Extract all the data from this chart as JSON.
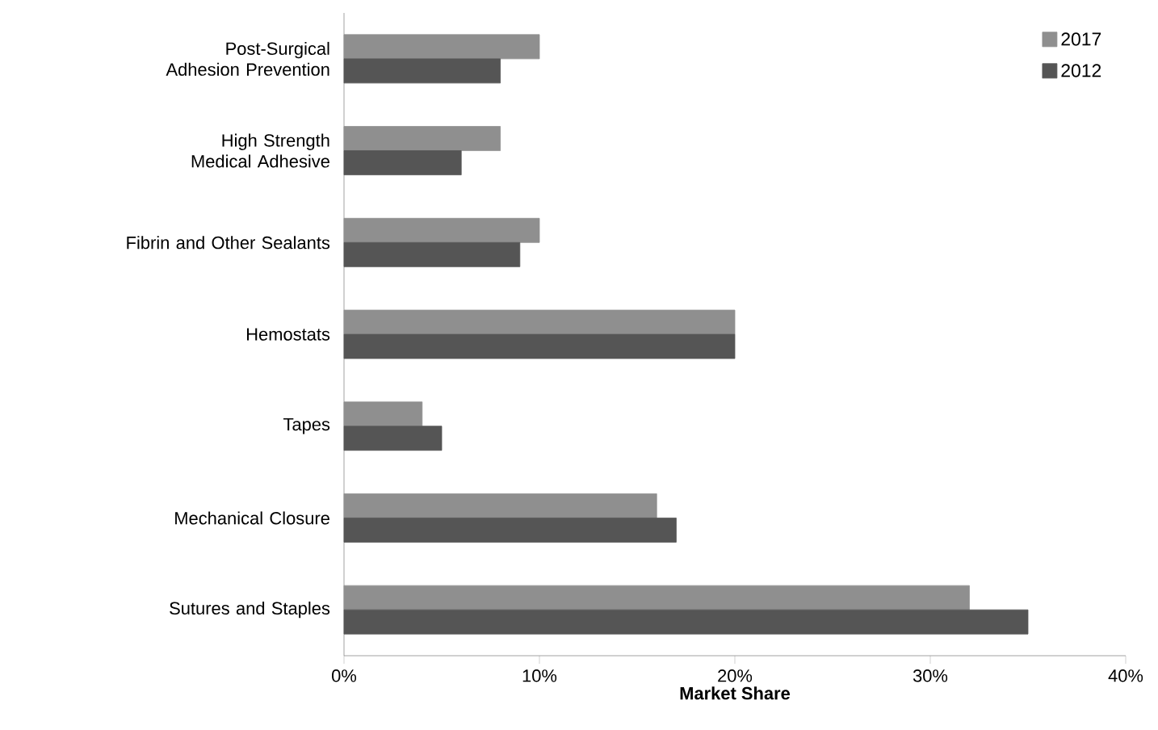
{
  "chart_data": {
    "type": "bar",
    "orientation": "horizontal",
    "xlabel": "Market Share",
    "categories": [
      "Post-Surgical Adhesion Prevention",
      "High Strength Medical Adhesive",
      "Fibrin and Other Sealants",
      "Hemostats",
      "Tapes",
      "Mechanical Closure",
      "Sutures and Staples"
    ],
    "series": [
      {
        "name": "2017",
        "color": "#8f8f8f",
        "values": [
          10,
          8,
          10,
          20,
          4,
          16,
          32
        ]
      },
      {
        "name": "2012",
        "color": "#555555",
        "values": [
          8,
          6,
          9,
          20,
          5,
          17,
          35
        ]
      }
    ],
    "xlim": [
      0,
      40
    ],
    "xticks": [
      {
        "value": 0,
        "label": "0%"
      },
      {
        "value": 10,
        "label": "10%"
      },
      {
        "value": 20,
        "label": "20%"
      },
      {
        "value": 30,
        "label": "30%"
      },
      {
        "value": 40,
        "label": "40%"
      }
    ],
    "legend": "top right"
  }
}
